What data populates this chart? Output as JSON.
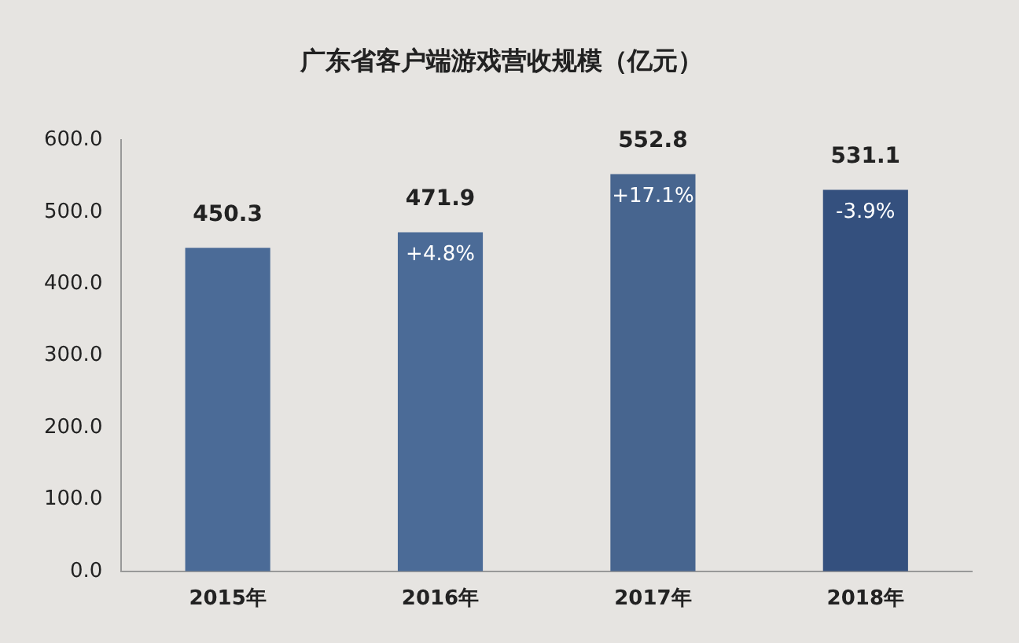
{
  "chart_data": {
    "type": "bar",
    "title": "广东省客户端游戏营收规模（亿元）",
    "categories": [
      "2015年",
      "2016年",
      "2017年",
      "2018年"
    ],
    "values": [
      450.3,
      471.9,
      552.8,
      531.1
    ],
    "colors": [
      "#4b6b97",
      "#4b6b97",
      "#47658f",
      "#34507e"
    ],
    "ylim": [
      0,
      600
    ],
    "yticks": [
      {
        "value": 0,
        "label": "0.0"
      },
      {
        "value": 100,
        "label": "100.0"
      },
      {
        "value": 200,
        "label": "200.0"
      },
      {
        "value": 300,
        "label": "300.0"
      },
      {
        "value": 400,
        "label": "400.0"
      },
      {
        "value": 500,
        "label": "500.0"
      },
      {
        "value": 600,
        "label": "600.0"
      }
    ],
    "grid": false,
    "legend": false,
    "data_labels": true,
    "annotations": [
      {
        "text": "+4.8%",
        "x": "2016年",
        "y": 471.9
      },
      {
        "text": "+17.1%",
        "x": "2017年",
        "y": 552.8
      },
      {
        "text": "-3.9%",
        "x": "2018年",
        "y": 531.1
      }
    ]
  }
}
